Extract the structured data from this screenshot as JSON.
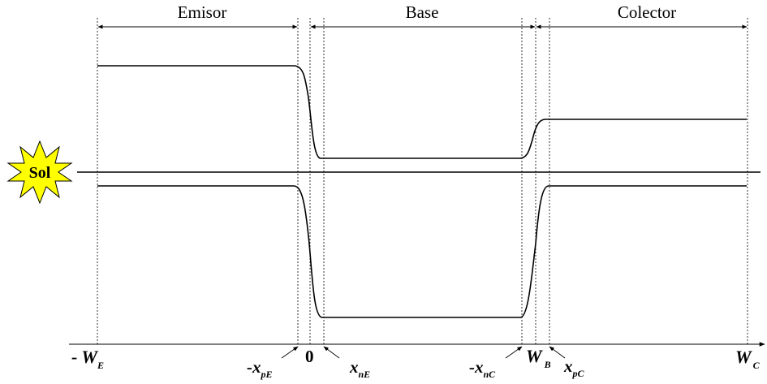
{
  "regions": {
    "emitter": "Emisor",
    "base": "Base",
    "collector": "Colector"
  },
  "sun": {
    "label": "Sol",
    "fill_color": "#ffff00"
  },
  "axis_labels": {
    "minus_we": {
      "prefix": "- W",
      "sub": "E"
    },
    "minus_xpe": {
      "prefix": "-x",
      "sub": "pE"
    },
    "zero": {
      "prefix": "0",
      "sub": ""
    },
    "xne": {
      "prefix": "x",
      "sub": "nE"
    },
    "minus_xnc": {
      "prefix": "-x",
      "sub": "nC"
    },
    "wb": {
      "prefix": "W",
      "sub": "B"
    },
    "xpc": {
      "prefix": "x",
      "sub": "pC"
    },
    "wc": {
      "prefix": "W",
      "sub": "C"
    }
  }
}
